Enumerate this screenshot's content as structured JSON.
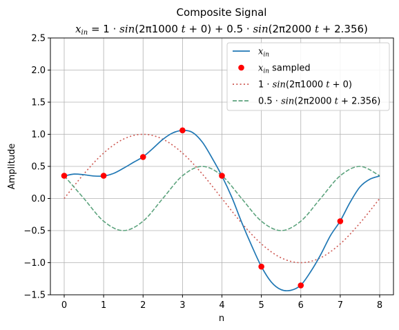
{
  "chart_data": {
    "type": "line",
    "title": "Composite Signal",
    "subtitle": "x_in = 1·sin(2π1000 t + 0) + 0.5·sin(2π2000 t + 2.356)",
    "xlabel": "n",
    "ylabel": "Amplitude",
    "xlim": [
      -0.35,
      8.35
    ],
    "ylim": [
      -1.5,
      2.5
    ],
    "xticks": [
      0,
      1,
      2,
      3,
      4,
      5,
      6,
      7,
      8
    ],
    "yticks": [
      -1.5,
      -1.0,
      -0.5,
      0.0,
      0.5,
      1.0,
      1.5,
      2.0,
      2.5
    ],
    "ytick_labels": [
      "−1.5",
      "−1.0",
      "−0.5",
      "0.0",
      "0.5",
      "1.0",
      "1.5",
      "2.0",
      "2.5"
    ],
    "grid": true,
    "legend_position": "top-right",
    "series": [
      {
        "name": "x_in",
        "style": "solid",
        "color": "#1f77b4",
        "x": [
          0,
          0.25,
          0.5,
          0.75,
          1,
          1.25,
          1.5,
          1.75,
          2,
          2.25,
          2.5,
          2.75,
          3,
          3.25,
          3.5,
          3.75,
          4,
          4.25,
          4.5,
          4.75,
          5,
          5.25,
          5.5,
          5.75,
          6,
          6.25,
          6.5,
          6.75,
          7,
          7.25,
          7.5,
          7.75,
          8
        ],
        "y": [
          0.35,
          0.38,
          0.37,
          0.35,
          0.35,
          0.39,
          0.47,
          0.56,
          0.65,
          0.78,
          0.92,
          1.02,
          1.06,
          1.03,
          0.88,
          0.63,
          0.35,
          0.02,
          -0.37,
          -0.73,
          -1.06,
          -1.3,
          -1.42,
          -1.43,
          -1.35,
          -1.14,
          -0.88,
          -0.58,
          -0.35,
          -0.06,
          0.18,
          0.3,
          0.35
        ]
      },
      {
        "name": "x_in sampled",
        "style": "markers",
        "color": "#ff0000",
        "x": [
          0,
          1,
          2,
          3,
          4,
          5,
          6,
          7
        ],
        "y": [
          0.354,
          0.354,
          0.646,
          1.061,
          0.354,
          -1.061,
          -1.354,
          -0.354
        ]
      },
      {
        "name": "1·sin(2π1000 t + 0)",
        "style": "dotted",
        "color": "#cd5750",
        "x": [
          0,
          0.5,
          1,
          1.5,
          2,
          2.5,
          3,
          3.5,
          4,
          4.5,
          5,
          5.5,
          6,
          6.5,
          7,
          7.5,
          8
        ],
        "y": [
          0,
          0.383,
          0.707,
          0.924,
          1.0,
          0.924,
          0.707,
          0.383,
          0,
          -0.383,
          -0.707,
          -0.924,
          -1.0,
          -0.924,
          -0.707,
          -0.383,
          0
        ]
      },
      {
        "name": "0.5·sin(2π2000 t + 2.356)",
        "style": "dashed",
        "color": "#5ca37d",
        "x": [
          0,
          0.5,
          1,
          1.5,
          2,
          2.5,
          3,
          3.5,
          4,
          4.5,
          5,
          5.5,
          6,
          6.5,
          7,
          7.5,
          8
        ],
        "y": [
          0.354,
          0,
          -0.354,
          -0.5,
          -0.354,
          0,
          0.354,
          0.5,
          0.354,
          0,
          -0.354,
          -0.5,
          -0.354,
          0,
          0.354,
          0.5,
          0.354
        ]
      }
    ]
  }
}
